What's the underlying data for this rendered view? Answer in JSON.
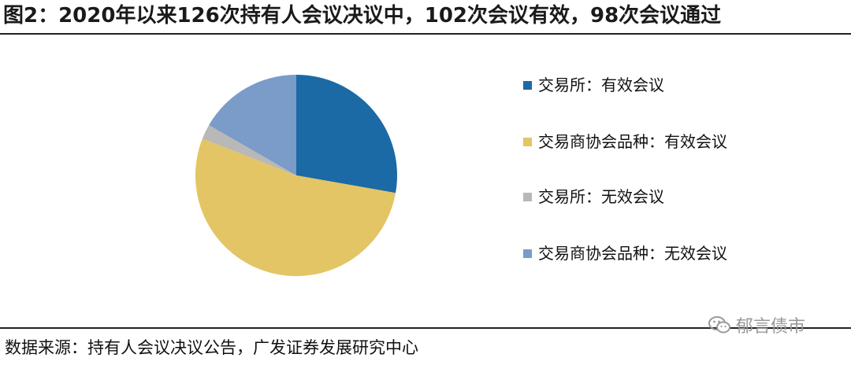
{
  "title": "图2：2020年以来126次持有人会议决议中，102次会议有效，98次会议通过",
  "chart_data": {
    "type": "pie",
    "title": "图2：2020年以来126次持有人会议决议中，102次会议有效，98次会议通过",
    "legend_position": "right",
    "slices": [
      {
        "label": "交易所：有效会议",
        "value": 35,
        "color": "#1b6aa5"
      },
      {
        "label": "交易商协会品种：有效会议",
        "value": 67,
        "color": "#e3c565"
      },
      {
        "label": "交易所：无效会议",
        "value": 3,
        "color": "#b8b8b8"
      },
      {
        "label": "交易商协会品种：无效会议",
        "value": 21,
        "color": "#7b9bc8"
      }
    ]
  },
  "source": "数据来源：持有人会议决议公告，广发证券发展研究中心",
  "watermark": {
    "icon": "wechat-icon",
    "text": "郁言债市"
  }
}
